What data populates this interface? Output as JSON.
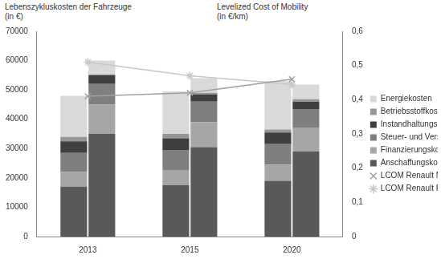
{
  "chart_data": {
    "type": "bar",
    "stacked": true,
    "grid": false,
    "legend": "right",
    "y_label": "Lebenszykluskosten der Fahrzeuge\n(in €)",
    "y2_label": "Levelized Cost of Mobility\n(in €/km)",
    "categories": [
      "2013",
      "2015",
      "2020"
    ],
    "ylim": [
      0,
      70000
    ],
    "yticks": [
      0,
      10000,
      20000,
      30000,
      40000,
      50000,
      60000,
      70000
    ],
    "y2lim": [
      0,
      0.6
    ],
    "y2ticks": [
      0,
      {
        "value": 0.1,
        "label": "0,1"
      },
      {
        "value": 0.2,
        "label": "0,2"
      },
      {
        "value": 0.3,
        "label": "0,3"
      },
      {
        "value": 0.4,
        "label": "0,4"
      },
      {
        "value": 0.5,
        "label": "0,5"
      },
      {
        "value": 0.6,
        "label": "0,6"
      }
    ],
    "series": [
      {
        "name": "Anschaffungskosten",
        "color": "#595959",
        "values": [
          [
            17000,
            35000
          ],
          [
            17500,
            30500
          ],
          [
            19000,
            29000
          ]
        ]
      },
      {
        "name": "Finanzierungskosten",
        "color": "#a6a6a6",
        "values": [
          [
            5000,
            10000
          ],
          [
            5000,
            8500
          ],
          [
            5500,
            8000
          ]
        ]
      },
      {
        "name": "Steuer- und Versicherungskosten",
        "color": "#7f7f7f",
        "values": [
          [
            6500,
            7000
          ],
          [
            7000,
            7000
          ],
          [
            7000,
            6500
          ]
        ]
      },
      {
        "name": "Instandhaltungskosten",
        "color": "#3f3f3f",
        "values": [
          [
            4000,
            3000
          ],
          [
            4000,
            2500
          ],
          [
            4000,
            2500
          ]
        ]
      },
      {
        "name": "Betriebsstoffkosten",
        "color": "#969696",
        "values": [
          [
            1500,
            300
          ],
          [
            1500,
            500
          ],
          [
            1000,
            800
          ]
        ]
      },
      {
        "name": "Energiekosten",
        "color": "#d9d9d9",
        "values": [
          [
            14000,
            4700
          ],
          [
            14500,
            5000
          ],
          [
            16500,
            5000
          ]
        ]
      },
      {
        "name": "LCOM Renault Mégane",
        "type": "line",
        "axis": "y2",
        "marker": "x",
        "color": "#a0a0a0",
        "values": [
          0.41,
          0.42,
          0.46
        ]
      },
      {
        "name": "LCOM Renault Fluence Z.E.",
        "type": "line",
        "axis": "y2",
        "marker": "star",
        "color": "#c8c8c8",
        "values": [
          0.51,
          0.47,
          0.445
        ]
      }
    ]
  }
}
